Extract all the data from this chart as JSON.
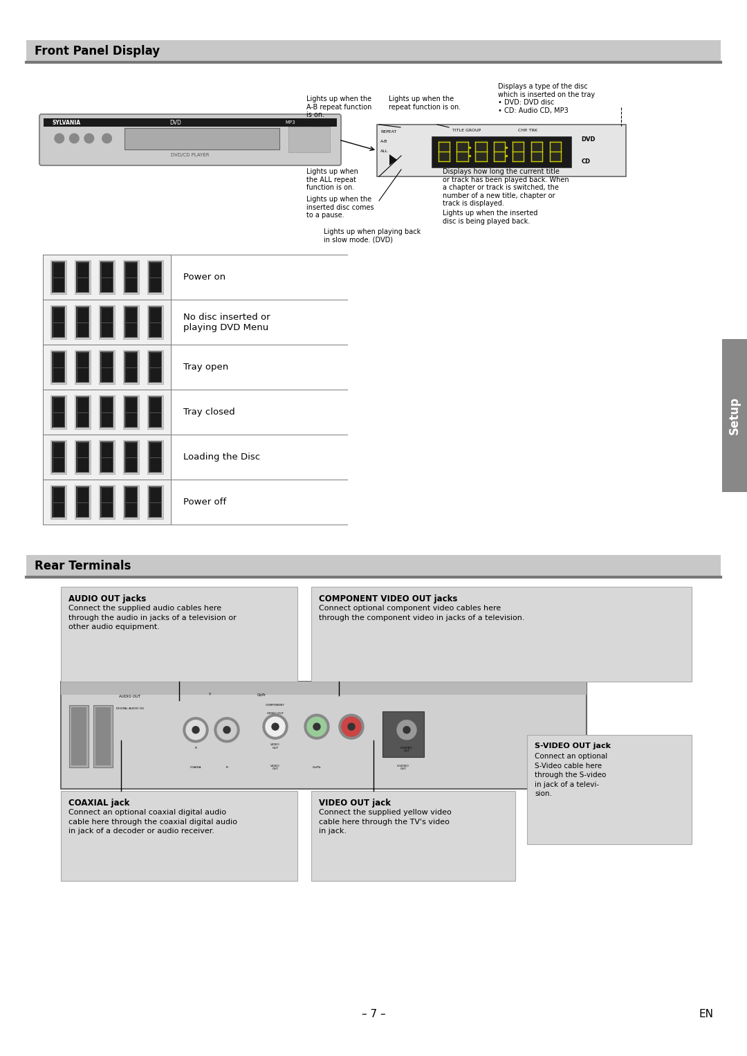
{
  "page_bg": "#ffffff",
  "section1_title": "Front Panel Display",
  "section2_title": "Rear Terminals",
  "section_header_bg": "#c8c8c8",
  "section_header_dark": "#888888",
  "display_rows": [
    {
      "label": "Power on"
    },
    {
      "label": "No disc inserted or\nplaying DVD Menu"
    },
    {
      "label": "Tray open"
    },
    {
      "label": "Tray closed"
    },
    {
      "label": "Loading the Disc"
    },
    {
      "label": "Power off"
    }
  ],
  "ann1_text": "Lights up when the\nA-B repeat function\nis on.",
  "ann2_text": "Lights up when the\nrepeat function is on.",
  "ann3_text": "Displays a type of the disc\nwhich is inserted on the tray\n• DVD: DVD disc\n• CD: Audio CD, MP3",
  "ann4_text": "Lights up when\nthe ALL repeat\nfunction is on.",
  "ann5_text": "Lights up when the\ninserted disc comes\nto a pause.",
  "ann6_text": "Displays how long the current title\nor track has been played back. When\na chapter or track is switched, the\nnumber of a new title, chapter or\ntrack is displayed.",
  "ann7_text": "Lights up when the inserted\ndisc is being played back.",
  "ann8_text": "Lights up when playing back\nin slow mode. (DVD)",
  "audio_out_title": "AUDIO OUT jacks",
  "audio_out_body": "Connect the supplied audio cables here\nthrough the audio in jacks of a television or\nother audio equipment.",
  "comp_video_title": "COMPONENT VIDEO OUT jacks",
  "comp_video_body": "Connect optional component video cables here\nthrough the component video in jacks of a television.",
  "coaxial_title": "COAXIAL jack",
  "coaxial_body": "Connect an optional coaxial digital audio\ncable here through the coaxial digital audio\nin jack of a decoder or audio receiver.",
  "video_out_title": "VIDEO OUT jack",
  "video_out_body": "Connect the supplied yellow video\ncable here through the TV's video\nin jack.",
  "svideo_title": "S-VIDEO OUT jack",
  "svideo_body": "Connect an optional\nS-Video cable here\nthrough the S-video\nin jack of a televi-\nsion.",
  "page_number": "– 7 –",
  "page_en": "EN",
  "setup_tab": "Setup"
}
